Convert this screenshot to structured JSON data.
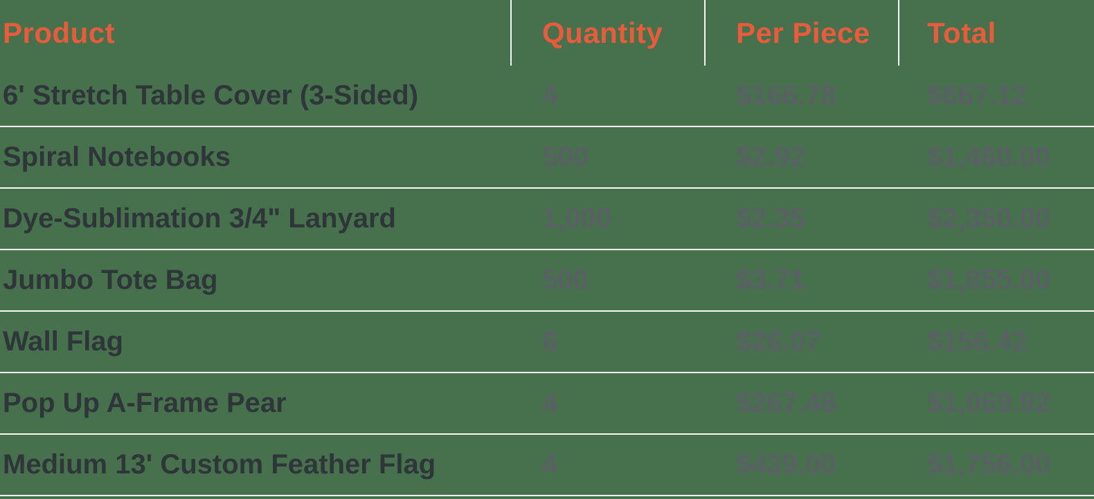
{
  "table": {
    "columns": [
      {
        "key": "product",
        "label": "Product"
      },
      {
        "key": "quantity",
        "label": "Quantity"
      },
      {
        "key": "per_piece",
        "label": "Per Piece"
      },
      {
        "key": "total",
        "label": "Total"
      }
    ],
    "rows": [
      {
        "product": "6' Stretch Table Cover (3-Sided)",
        "quantity": "4",
        "per_piece": "$166.78",
        "total": "$667.12"
      },
      {
        "product": "Spiral Notebooks",
        "quantity": "500",
        "per_piece": "$2.92",
        "total": "$1,460.00"
      },
      {
        "product": "Dye-Sublimation 3/4\" Lanyard",
        "quantity": "1,000",
        "per_piece": "$2.35",
        "total": "$2,350.00"
      },
      {
        "product": "Jumbo Tote Bag",
        "quantity": "500",
        "per_piece": "$3.71",
        "total": "$1,855.00"
      },
      {
        "product": "Wall Flag",
        "quantity": "6",
        "per_piece": "$26.07",
        "total": "$156.42"
      },
      {
        "product": "Pop Up A-Frame Pear",
        "quantity": "4",
        "per_piece": "$267.48",
        "total": "$1,069.92"
      },
      {
        "product": "Medium 13' Custom Feather Flag",
        "quantity": "4",
        "per_piece": "$439.00",
        "total": "$1,756.00"
      }
    ]
  },
  "colors": {
    "background": "#47714D",
    "header_text": "#E85B3B",
    "product_text": "#2F363A",
    "value_text": "#596164",
    "divider": "#FBFBF8"
  },
  "chart_data": {
    "type": "table",
    "columns": [
      "Product",
      "Quantity",
      "Per Piece",
      "Total"
    ],
    "rows": [
      [
        "6' Stretch Table Cover (3-Sided)",
        4,
        166.78,
        667.12
      ],
      [
        "Spiral Notebooks",
        500,
        2.92,
        1460.0
      ],
      [
        "Dye-Sublimation 3/4\" Lanyard",
        1000,
        2.35,
        2350.0
      ],
      [
        "Jumbo Tote Bag",
        500,
        3.71,
        1855.0
      ],
      [
        "Wall Flag",
        6,
        26.07,
        156.42
      ],
      [
        "Pop Up A-Frame Pear",
        4,
        267.48,
        1069.92
      ],
      [
        "Medium 13' Custom Feather Flag",
        4,
        439.0,
        1756.0
      ]
    ]
  }
}
